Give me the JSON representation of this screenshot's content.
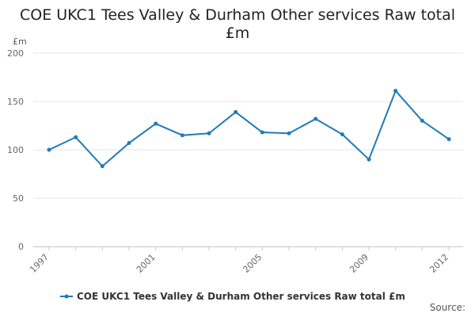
{
  "title": "COE UKC1 Tees Valley & Durham Other services Raw total £m",
  "unit_label": "£m",
  "source_label": "Source:",
  "colors": {
    "series": "#1f7bb6",
    "grid": "#e6e6e6",
    "axis": "#cccccc"
  },
  "chart_data": {
    "type": "line",
    "title": "COE UKC1 Tees Valley & Durham Other services Raw total £m",
    "xlabel": "",
    "ylabel": "£m",
    "x": [
      1997,
      1998,
      1999,
      2000,
      2001,
      2002,
      2003,
      2004,
      2005,
      2006,
      2007,
      2008,
      2009,
      2010,
      2011,
      2012
    ],
    "x_tick_labels": [
      "1997",
      "2001",
      "2005",
      "2009",
      "2012"
    ],
    "y_ticks": [
      0,
      50,
      100,
      150,
      200
    ],
    "ylim": [
      0,
      200
    ],
    "xlim": [
      1997,
      2012
    ],
    "grid": true,
    "legend_position": "bottom",
    "series": [
      {
        "name": "COE UKC1 Tees Valley & Durham Other services Raw total £m",
        "values": [
          100,
          113,
          83,
          107,
          127,
          115,
          117,
          139,
          118,
          117,
          132,
          116,
          90,
          161,
          130,
          111
        ]
      }
    ]
  }
}
